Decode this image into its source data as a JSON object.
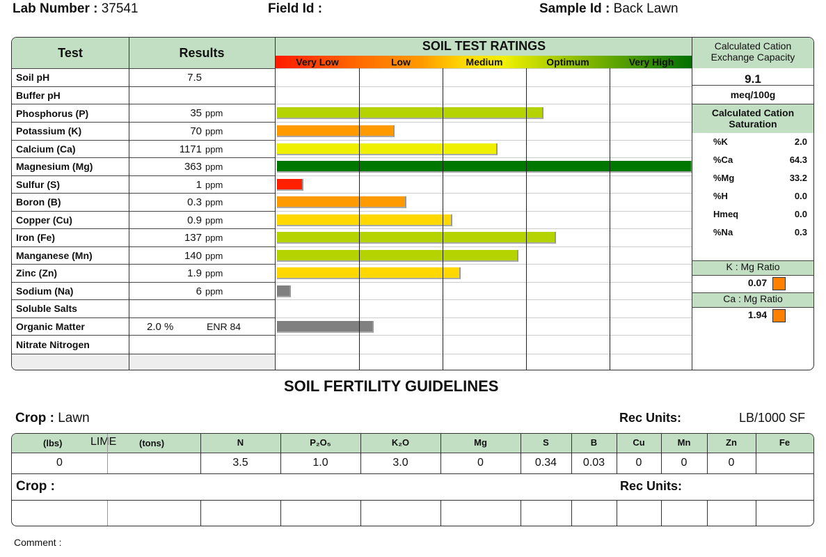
{
  "header": {
    "lab_label": "Lab Number :",
    "lab_value": "37541",
    "field_label": "Field Id :",
    "field_value": "",
    "sample_label": "Sample Id :",
    "sample_value": "Back Lawn"
  },
  "table": {
    "test_header": "Test",
    "results_header": "Results",
    "ratings_title": "SOIL TEST RATINGS",
    "bands": [
      "Very Low",
      "Low",
      "Medium",
      "Optimum",
      "Very High"
    ],
    "rows": [
      {
        "test": "Soil pH",
        "value": "7.5",
        "unit": ""
      },
      {
        "test": "Buffer pH",
        "value": "",
        "unit": ""
      },
      {
        "test": "Phosphorus (P)",
        "value": "35",
        "unit": "ppm",
        "level": 0.64,
        "color": "#b5d300"
      },
      {
        "test": "Potassium (K)",
        "value": "70",
        "unit": "ppm",
        "level": 0.28,
        "color": "#ff9a00"
      },
      {
        "test": "Calcium (Ca)",
        "value": "1171",
        "unit": "ppm",
        "level": 0.53,
        "color": "#eef000"
      },
      {
        "test": "Magnesium (Mg)",
        "value": "363",
        "unit": "ppm",
        "level": 1.0,
        "color": "#007800"
      },
      {
        "test": "Sulfur (S)",
        "value": "1",
        "unit": "ppm",
        "level": 0.06,
        "color": "#ff2000"
      },
      {
        "test": "Boron (B)",
        "value": "0.3",
        "unit": "ppm",
        "level": 0.31,
        "color": "#ff9a00"
      },
      {
        "test": "Copper (Cu)",
        "value": "0.9",
        "unit": "ppm",
        "level": 0.42,
        "color": "#ffd800"
      },
      {
        "test": "Iron (Fe)",
        "value": "137",
        "unit": "ppm",
        "level": 0.67,
        "color": "#b5d300"
      },
      {
        "test": "Manganese (Mn)",
        "value": "140",
        "unit": "ppm",
        "level": 0.58,
        "color": "#b5d300"
      },
      {
        "test": "Zinc (Zn)",
        "value": "1.9",
        "unit": "ppm",
        "level": 0.44,
        "color": "#ffd800"
      },
      {
        "test": "Sodium (Na)",
        "value": "6",
        "unit": "ppm",
        "level": 0.03,
        "color": "#808080"
      },
      {
        "test": "Soluble Salts",
        "value": "",
        "unit": ""
      },
      {
        "test": "Organic Matter",
        "value": "2.0 %",
        "unit": "",
        "extra": "ENR  84",
        "level": 0.23,
        "color": "#808080"
      },
      {
        "test": "Nitrate Nitrogen",
        "value": "",
        "unit": ""
      },
      {
        "test": "",
        "value": "",
        "unit": ""
      }
    ]
  },
  "cec": {
    "title": "Calculated Cation Exchange Capacity",
    "value": "9.1",
    "unit": "meq/100g"
  },
  "saturation": {
    "title": "Calculated Cation Saturation",
    "items": [
      {
        "k": "%K",
        "v": "2.0"
      },
      {
        "k": "%Ca",
        "v": "64.3"
      },
      {
        "k": "%Mg",
        "v": "33.2"
      },
      {
        "k": "%H",
        "v": "0.0"
      },
      {
        "k": "Hmeq",
        "v": "0.0"
      },
      {
        "k": "%Na",
        "v": "0.3"
      }
    ]
  },
  "ratios": {
    "kmg_label": "K : Mg Ratio",
    "kmg_value": "0.07",
    "camg_label": "Ca : Mg Ratio",
    "camg_value": "1.94",
    "flag_color": "#ff7f00"
  },
  "guidelines": {
    "title": "SOIL FERTILITY GUIDELINES",
    "crop_label": "Crop :",
    "crop_value": "Lawn",
    "rec_label": "Rec Units:",
    "rec_value": "LB/1000 SF",
    "crop2_label": "Crop :",
    "rec2_label": "Rec Units:",
    "lime": {
      "lbs": "(lbs)",
      "title": "LIME",
      "tons": "(tons)"
    },
    "columns": [
      "N",
      "P₂O₅",
      "K₂O",
      "Mg",
      "S",
      "B",
      "Cu",
      "Mn",
      "Zn",
      "Fe"
    ],
    "values": {
      "lime_lbs": "0",
      "lime_tons": "",
      "N": "3.5",
      "P2O5": "1.0",
      "K2O": "3.0",
      "Mg": "0",
      "S": "0.34",
      "B": "0.03",
      "Cu": "0",
      "Mn": "0",
      "Zn": "0",
      "Fe": ""
    }
  },
  "comment_label": "Comment :"
}
